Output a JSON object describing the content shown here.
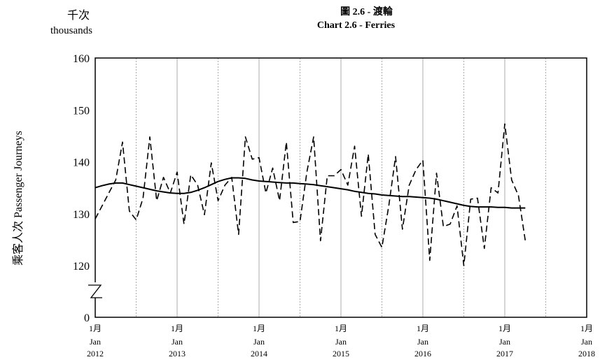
{
  "unit_zh": "千次",
  "unit_en": "thousands",
  "title_zh": "圖 2.6 - 渡輪",
  "title_en": "Chart 2.6 - Ferries",
  "ylabel": "乘客人次  Passenger Journeys",
  "chart_data": {
    "type": "line",
    "title": "Chart 2.6 - Ferries",
    "ylabel": "乘客人次  Passenger Journeys",
    "xlabel": "",
    "ylim": [
      0,
      160
    ],
    "axis_break": [
      0,
      120
    ],
    "yticks": [
      0,
      120,
      130,
      140,
      150,
      160
    ],
    "xticks": [
      {
        "zh": "1月",
        "en": "Jan",
        "year": "2012"
      },
      {
        "zh": "1月",
        "en": "Jan",
        "year": "2013"
      },
      {
        "zh": "1月",
        "en": "Jan",
        "year": "2014"
      },
      {
        "zh": "1月",
        "en": "Jan",
        "year": "2015"
      },
      {
        "zh": "1月",
        "en": "Jan",
        "year": "2016"
      },
      {
        "zh": "1月",
        "en": "Jan",
        "year": "2017"
      },
      {
        "zh": "1月",
        "en": "Jan",
        "year": "2018"
      }
    ],
    "x_start": "2012-01",
    "grid": "vertical lines every 6 months",
    "series": [
      {
        "style": "dashed",
        "values": [
          129,
          131.5,
          134,
          136.5,
          143.8,
          130.5,
          128.8,
          133,
          144.8,
          132.5,
          137,
          134,
          138,
          128,
          137.5,
          135.5,
          129.8,
          139.8,
          132.5,
          135.5,
          137,
          126,
          144.8,
          140.5,
          140.8,
          134,
          138.8,
          132.5,
          143.8,
          128.3,
          128.5,
          138,
          144.8,
          124.8,
          137.3,
          137.3,
          138.5,
          135.5,
          143,
          129.5,
          141.5,
          126,
          123.5,
          131.5,
          141,
          127,
          135.5,
          138.5,
          140.3,
          121,
          137.8,
          127.5,
          128,
          131.5,
          119.8,
          132.8,
          133,
          123.3,
          135,
          134,
          147.3,
          136.5,
          133.5,
          124.8
        ]
      },
      {
        "style": "solid",
        "values": [
          135,
          135.4,
          135.7,
          135.9,
          135.9,
          135.6,
          135.3,
          135,
          134.7,
          134.4,
          134.2,
          134,
          133.9,
          133.9,
          134.1,
          134.5,
          135,
          135.6,
          136.2,
          136.6,
          136.9,
          136.9,
          136.8,
          136.5,
          136.3,
          136.2,
          136.1,
          136,
          135.9,
          135.9,
          135.8,
          135.7,
          135.6,
          135.4,
          135.2,
          135,
          134.8,
          134.6,
          134.3,
          134.1,
          133.9,
          133.8,
          133.6,
          133.5,
          133.4,
          133.3,
          133.3,
          133.2,
          133.1,
          133,
          132.8,
          132.5,
          132.2,
          131.9,
          131.6,
          131.4,
          131.3,
          131.3,
          131.3,
          131.2,
          131.2,
          131.1,
          131.1,
          131.1
        ]
      }
    ]
  }
}
